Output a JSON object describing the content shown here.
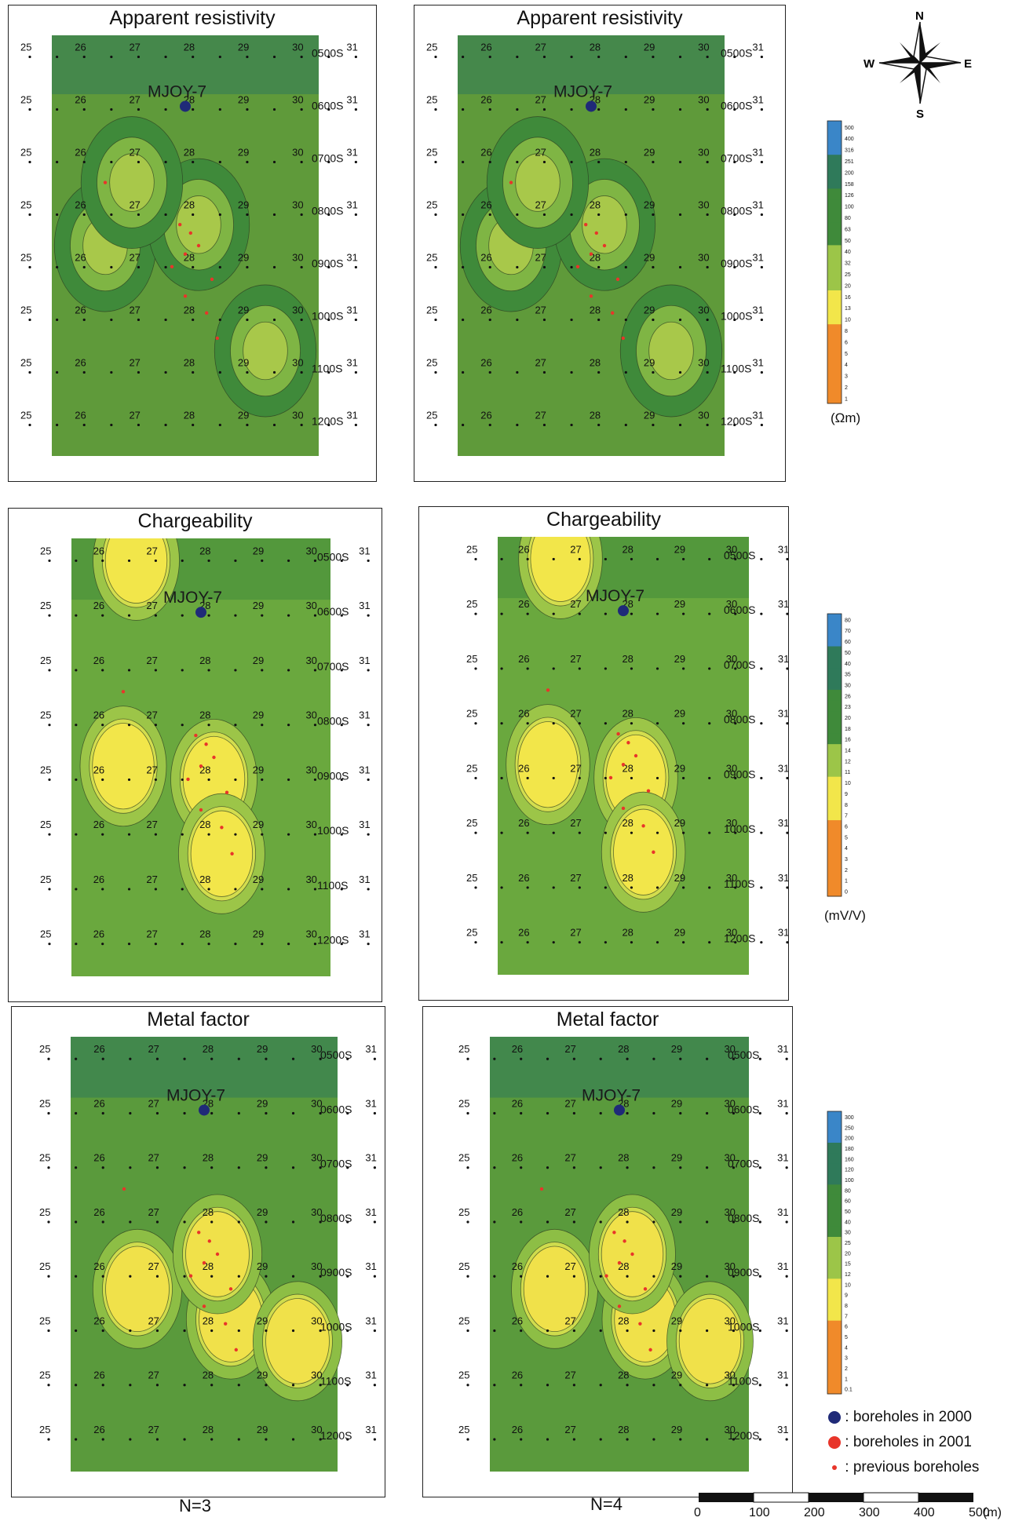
{
  "panels": [
    {
      "title": "Apparent resistivity",
      "variant": "res"
    },
    {
      "title": "Apparent resistivity",
      "variant": "res"
    },
    {
      "title": "Chargeability",
      "variant": "chg"
    },
    {
      "title": "Chargeability",
      "variant": "chg"
    },
    {
      "title": "Metal factor",
      "variant": "mf"
    },
    {
      "title": "Metal factor",
      "variant": "mf"
    }
  ],
  "grid": {
    "line_numbers": [
      "25",
      "26",
      "27",
      "28",
      "29",
      "30",
      "31"
    ],
    "station_labels": [
      "0500S",
      "0600S",
      "0700S",
      "0800S",
      "0900S",
      "1000S",
      "1100S",
      "1200S"
    ],
    "borehole_label": "MJOY-7"
  },
  "colorbars": [
    {
      "unit": "(Ωm)",
      "ticks": [
        "500",
        "400",
        "316",
        "251",
        "200",
        "158",
        "126",
        "100",
        "80",
        "63",
        "50",
        "40",
        "32",
        "25",
        "20",
        "16",
        "13",
        "10",
        "8",
        "6",
        "5",
        "4",
        "3",
        "2",
        "1"
      ]
    },
    {
      "unit": "(mV/V)",
      "ticks": [
        "80",
        "70",
        "60",
        "50",
        "40",
        "35",
        "30",
        "26",
        "23",
        "20",
        "18",
        "16",
        "14",
        "12",
        "11",
        "10",
        "9",
        "8",
        "7",
        "6",
        "5",
        "4",
        "3",
        "2",
        "1",
        "0"
      ]
    },
    {
      "unit": "",
      "ticks": [
        "300",
        "250",
        "200",
        "180",
        "160",
        "120",
        "100",
        "80",
        "60",
        "50",
        "40",
        "30",
        "25",
        "20",
        "15",
        "12",
        "10",
        "9",
        "8",
        "7",
        "6",
        "5",
        "4",
        "3",
        "2",
        "1",
        "0.1"
      ]
    }
  ],
  "compass": {
    "n": "N",
    "s": "S",
    "e": "E",
    "w": "W"
  },
  "legend": [
    {
      "label": ": boreholes in 2000",
      "color": "#1f2a78"
    },
    {
      "label": ": boreholes in 2001",
      "color": "#e8352a"
    },
    {
      "label": ": previous boreholes",
      "color": "#e8352a"
    }
  ],
  "n_labels": [
    "N=3",
    "N=4"
  ],
  "scale": {
    "ticks": [
      "0",
      "100",
      "200",
      "300",
      "400",
      "500"
    ],
    "unit": "(m)"
  },
  "colors": {
    "low": "#2f8a3a",
    "mid": "#7fbf3f",
    "high": "#f2e64a",
    "blue": "#3a86a8",
    "red": "#d8322a"
  }
}
